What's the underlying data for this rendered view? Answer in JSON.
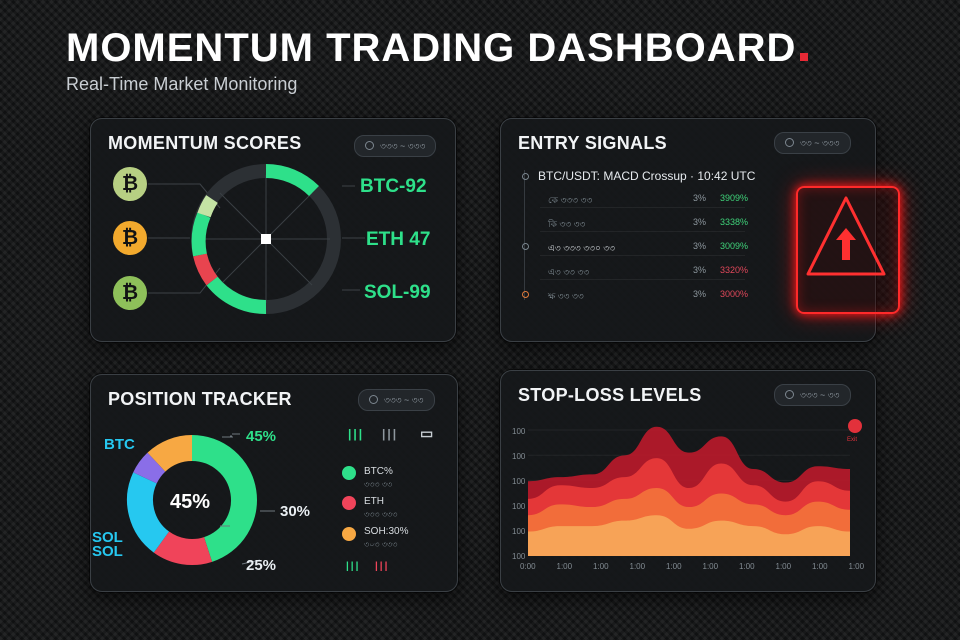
{
  "header": {
    "title": "MOMENTUM TRADING DASHBOARD",
    "subtitle": "Real-Time Market Monitoring",
    "accent_color": "#e62935"
  },
  "momentum_scores": {
    "title": "MOMENTUM SCORES",
    "pill_label": "৩৩৩ ~ ৩৩৩",
    "coins": [
      {
        "symbol": "₿",
        "color": "#b7cf83",
        "icon": "bitcoin-icon"
      },
      {
        "symbol": "₿",
        "color": "#f2a92d",
        "icon": "bitcoin-icon"
      },
      {
        "symbol": "₿",
        "color": "#8ec05a",
        "icon": "bitcoin-icon"
      }
    ],
    "scores": [
      {
        "label": "BTC-92",
        "color": "#2ee08a"
      },
      {
        "label": "ETH 47",
        "color": "#2ee08a"
      },
      {
        "label": "SOL-99",
        "color": "#2ee08a"
      }
    ]
  },
  "entry_signals": {
    "title": "ENTRY SIGNALS",
    "pill_label": "৩৩ ~ ৩৩৩",
    "headline": "BTC/USDT: MACD Crossup · 10:42 UTC",
    "rows": [
      {
        "label": "কে ৩৩৩ ৩৩",
        "mid": "3%",
        "value": "3909%",
        "color": "#3fd37a"
      },
      {
        "label": "কি ৩৩ ৩৩",
        "mid": "3%",
        "value": "3338%",
        "color": "#3fd37a"
      },
      {
        "label": "এ৩ ৩৩৩ ৩৩০ ৩৩",
        "mid": "3%",
        "value": "3009%",
        "color": "#3fd37a"
      },
      {
        "label": "এ৩ ৩৩ ৩৩",
        "mid": "3%",
        "value": "3320%",
        "color": "#e0475a"
      },
      {
        "label": "ক্ষ ৩৩ ৩৩",
        "mid": "3%",
        "value": "3000%",
        "color": "#e0475a"
      }
    ],
    "alert_icon": "warning-arrow-icon",
    "alert_color": "#ff2a2a"
  },
  "position_tracker": {
    "title": "POSITION TRACKER",
    "pill_label": "৩৩৩ ~ ৩৩",
    "center_label": "45%",
    "segments": [
      {
        "name": "green",
        "value": 45,
        "color": "#2ee08a"
      },
      {
        "name": "red",
        "value": 15,
        "color": "#f0445a"
      },
      {
        "name": "cyan",
        "value": 22,
        "color": "#26c8f0"
      },
      {
        "name": "purple",
        "value": 6,
        "color": "#8a6ee8"
      },
      {
        "name": "orange",
        "value": 12,
        "color": "#f7a843"
      }
    ],
    "callouts": [
      {
        "text": "45%",
        "color": "#2ee08a"
      },
      {
        "text": "30%",
        "color": "#e9eef2"
      },
      {
        "text": "25%",
        "color": "#e9eef2"
      },
      {
        "text": "BTC",
        "color": "#26c8f0"
      },
      {
        "text": "SOL",
        "color": "#26c8f0"
      },
      {
        "text": "SOL",
        "color": "#26c8f0"
      }
    ],
    "legend": [
      {
        "label": "BTC%",
        "sub": "৩৩৩ ৩৩",
        "color": "#2ee08a"
      },
      {
        "label": "ETH",
        "sub": "৩৩৩ ৩৩৩",
        "color": "#f0445a"
      },
      {
        "label": "SOH:30%",
        "sub": "৩০৩ ৩৩৩",
        "color": "#f7a843"
      }
    ],
    "bar_glyphs": [
      "|||",
      "|||",
      "▭",
      "|||",
      "|||"
    ]
  },
  "stop_loss": {
    "title": "STOP-LOSS LEVELS",
    "pill_label": "৩৩৩ ~ ৩৩",
    "button_label": "Exit",
    "y_ticks": [
      "100",
      "100",
      "100",
      "100",
      "100",
      "100"
    ],
    "x_ticks": [
      "0:00",
      "1:00",
      "1:00",
      "1:00",
      "1:00",
      "1:00",
      "1:00",
      "1:00",
      "1:00",
      "1:00"
    ],
    "series": [
      {
        "color": "#b81a2a",
        "values": [
          55,
          58,
          60,
          74,
          95,
          76,
          88,
          64,
          54,
          66,
          64
        ]
      },
      {
        "color": "#e83a3a",
        "values": [
          42,
          52,
          50,
          58,
          72,
          50,
          68,
          52,
          40,
          55,
          48
        ]
      },
      {
        "color": "#f3723b",
        "values": [
          30,
          38,
          36,
          42,
          50,
          36,
          46,
          38,
          30,
          40,
          34
        ]
      },
      {
        "color": "#f7a85a",
        "values": [
          18,
          22,
          22,
          26,
          30,
          20,
          26,
          22,
          16,
          22,
          18
        ]
      }
    ]
  }
}
